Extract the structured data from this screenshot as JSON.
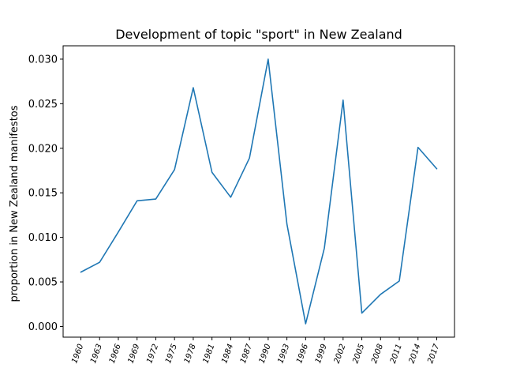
{
  "chart_data": {
    "type": "line",
    "title": "Development of topic \"sport\" in New Zealand",
    "xlabel": "",
    "ylabel": "proportion in New Zealand manifestos",
    "categories": [
      "1960",
      "1963",
      "1966",
      "1969",
      "1972",
      "1975",
      "1978",
      "1981",
      "1984",
      "1987",
      "1990",
      "1993",
      "1996",
      "1999",
      "2002",
      "2005",
      "2008",
      "2011",
      "2014",
      "2017"
    ],
    "series": [
      {
        "color": "#1f77b4",
        "values": [
          0.0061,
          0.0072,
          0.0106,
          0.0141,
          0.0143,
          0.0176,
          0.0268,
          0.0173,
          0.0145,
          0.0189,
          0.03,
          0.0115,
          0.0003,
          0.0088,
          0.0254,
          0.0015,
          0.0036,
          0.0051,
          0.0201,
          0.0177
        ]
      }
    ],
    "ylim": [
      -0.0012,
      0.0315
    ],
    "yticks": [
      "0.000",
      "0.005",
      "0.010",
      "0.015",
      "0.020",
      "0.025",
      "0.030"
    ],
    "grid": false,
    "legend": "none"
  }
}
